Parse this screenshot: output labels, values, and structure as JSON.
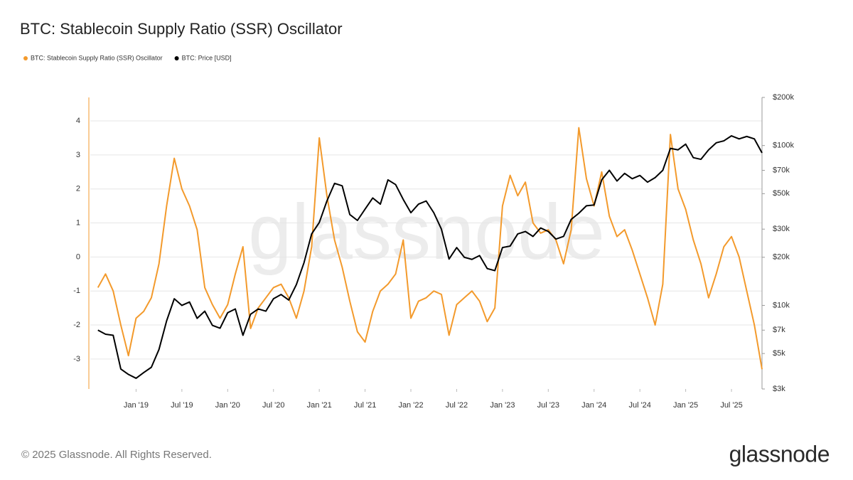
{
  "chart_data": {
    "type": "line",
    "title": "BTC: Stablecoin Supply Ratio (SSR) Oscillator",
    "x": [
      "2018-08",
      "2018-09",
      "2018-10",
      "2018-11",
      "2018-12",
      "2019-01",
      "2019-02",
      "2019-03",
      "2019-04",
      "2019-05",
      "2019-06",
      "2019-07",
      "2019-08",
      "2019-09",
      "2019-10",
      "2019-11",
      "2019-12",
      "2020-01",
      "2020-02",
      "2020-03",
      "2020-04",
      "2020-05",
      "2020-06",
      "2020-07",
      "2020-08",
      "2020-09",
      "2020-10",
      "2020-11",
      "2020-12",
      "2021-01",
      "2021-02",
      "2021-03",
      "2021-04",
      "2021-05",
      "2021-06",
      "2021-07",
      "2021-08",
      "2021-09",
      "2021-10",
      "2021-11",
      "2021-12",
      "2022-01",
      "2022-02",
      "2022-03",
      "2022-04",
      "2022-05",
      "2022-06",
      "2022-07",
      "2022-08",
      "2022-09",
      "2022-10",
      "2022-11",
      "2022-12",
      "2023-01",
      "2023-02",
      "2023-03",
      "2023-04",
      "2023-05",
      "2023-06",
      "2023-07",
      "2023-08",
      "2023-09",
      "2023-10",
      "2023-11",
      "2023-12",
      "2024-01",
      "2024-02",
      "2024-03",
      "2024-04",
      "2024-05",
      "2024-06",
      "2024-07",
      "2024-08",
      "2024-09",
      "2024-10",
      "2024-11",
      "2024-12",
      "2025-01",
      "2025-02",
      "2025-03",
      "2025-04",
      "2025-05",
      "2025-06",
      "2025-07",
      "2025-08",
      "2025-09",
      "2025-10",
      "2025-11"
    ],
    "xlim": [
      "2018-07",
      "2025-11"
    ],
    "xticks": [
      {
        "value": "2019-01",
        "label": "Jan '19"
      },
      {
        "value": "2019-07",
        "label": "Jul '19"
      },
      {
        "value": "2020-01",
        "label": "Jan '20"
      },
      {
        "value": "2020-07",
        "label": "Jul '20"
      },
      {
        "value": "2021-01",
        "label": "Jan '21"
      },
      {
        "value": "2021-07",
        "label": "Jul '21"
      },
      {
        "value": "2022-01",
        "label": "Jan '22"
      },
      {
        "value": "2022-07",
        "label": "Jul '22"
      },
      {
        "value": "2023-01",
        "label": "Jan '23"
      },
      {
        "value": "2023-07",
        "label": "Jul '23"
      },
      {
        "value": "2024-01",
        "label": "Jan '24"
      },
      {
        "value": "2024-07",
        "label": "Jul '24"
      },
      {
        "value": "2025-01",
        "label": "Jan '25"
      },
      {
        "value": "2025-07",
        "label": "Jul '25"
      }
    ],
    "ylim": [
      -3.88,
      4.69
    ],
    "yticks": [
      -3,
      -2,
      -1,
      0,
      1,
      2,
      3,
      4
    ],
    "y2lim": [
      3000,
      200000
    ],
    "y2scale": "log",
    "y2ticks": [
      {
        "value": 3000,
        "label": "$3k"
      },
      {
        "value": 5000,
        "label": "$5k"
      },
      {
        "value": 7000,
        "label": "$7k"
      },
      {
        "value": 10000,
        "label": "$10k"
      },
      {
        "value": 20000,
        "label": "$20k"
      },
      {
        "value": 30000,
        "label": "$30k"
      },
      {
        "value": 50000,
        "label": "$50k"
      },
      {
        "value": 70000,
        "label": "$70k"
      },
      {
        "value": 100000,
        "label": "$100k"
      },
      {
        "value": 200000,
        "label": "$200k"
      }
    ],
    "grid": true,
    "legend": "top-left",
    "series": [
      {
        "name": "BTC: Stablecoin Supply Ratio (SSR) Oscillator",
        "color": "#f39a2c",
        "axis": "y",
        "values": [
          -0.9,
          -0.5,
          -1.0,
          -2.0,
          -2.9,
          -1.8,
          -1.6,
          -1.2,
          -0.2,
          1.5,
          2.9,
          2.0,
          1.5,
          0.8,
          -0.9,
          -1.4,
          -1.8,
          -1.4,
          -0.5,
          0.3,
          -2.1,
          -1.5,
          -1.2,
          -0.9,
          -0.8,
          -1.2,
          -1.8,
          -1.0,
          0.3,
          3.5,
          1.8,
          0.5,
          -0.3,
          -1.3,
          -2.2,
          -2.5,
          -1.6,
          -1.0,
          -0.8,
          -0.5,
          0.5,
          -1.8,
          -1.3,
          -1.2,
          -1.0,
          -1.1,
          -2.3,
          -1.4,
          -1.2,
          -1.0,
          -1.3,
          -1.9,
          -1.5,
          1.5,
          2.4,
          1.8,
          2.2,
          1.0,
          0.7,
          0.8,
          0.5,
          -0.2,
          0.8,
          3.8,
          2.3,
          1.5,
          2.5,
          1.2,
          0.6,
          0.8,
          0.2,
          -0.5,
          -1.2,
          -2.0,
          -0.8,
          3.6,
          2.0,
          1.4,
          0.5,
          -0.2,
          -1.2,
          -0.5,
          0.3,
          0.6,
          0.0,
          -1.0,
          -2.0,
          -3.3
        ]
      },
      {
        "name": "BTC: Price [USD]",
        "color": "#000000",
        "axis": "y2",
        "values": [
          7000,
          6600,
          6500,
          4000,
          3700,
          3500,
          3800,
          4100,
          5300,
          8000,
          11000,
          10000,
          10500,
          8300,
          9200,
          7500,
          7200,
          9000,
          9500,
          6500,
          8800,
          9500,
          9200,
          11000,
          11700,
          10800,
          13500,
          18500,
          28000,
          33000,
          45000,
          58000,
          56000,
          37000,
          34000,
          40000,
          47000,
          43000,
          61000,
          57000,
          46000,
          38000,
          43000,
          45000,
          38000,
          30000,
          19500,
          23000,
          20000,
          19400,
          20500,
          17000,
          16500,
          23000,
          23500,
          28000,
          29000,
          27000,
          30500,
          29000,
          26000,
          27000,
          34500,
          37700,
          42000,
          42500,
          61000,
          70000,
          60000,
          67000,
          62000,
          65000,
          59000,
          63000,
          70000,
          96000,
          94000,
          102000,
          84000,
          82000,
          94000,
          104000,
          107000,
          115000,
          110000,
          114000,
          110000,
          90000
        ]
      }
    ]
  },
  "watermark": "glassnode",
  "footer": "© 2025 Glassnode. All Rights Reserved.",
  "logo": "glassnode"
}
